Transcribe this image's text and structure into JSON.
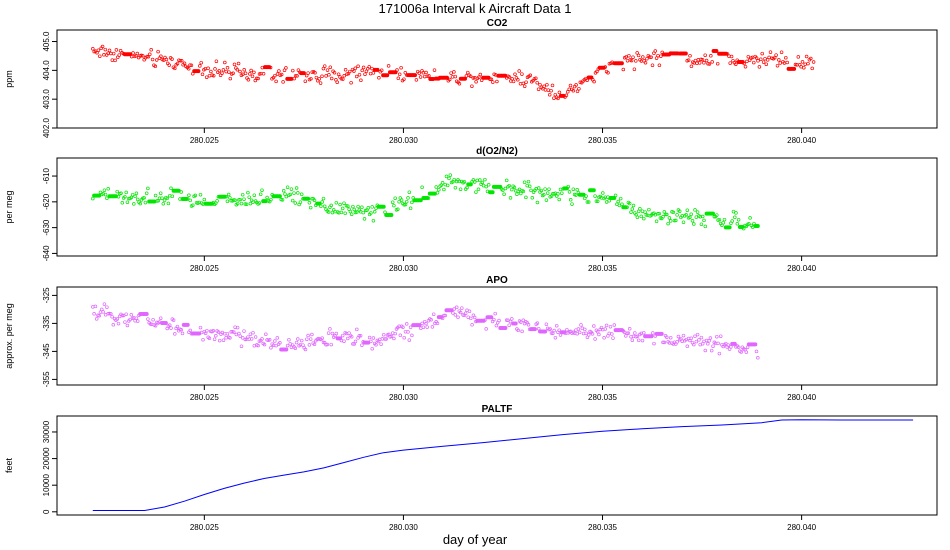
{
  "figure": {
    "title": "171006a   Interval k Aircraft Data 1",
    "xlabel": "day of year"
  },
  "chart_data": [
    {
      "type": "scatter",
      "title": "CO2",
      "ylabel": "ppm",
      "color": "#ff0000",
      "xlim": [
        280.0213,
        280.0434
      ],
      "ylim": [
        402.0,
        405.4
      ],
      "xticks": [
        "280.025",
        "280.030",
        "280.035",
        "280.040"
      ],
      "yticks": [
        "402.0",
        "403.0",
        "404.0",
        "405.0"
      ],
      "trend": {
        "x": [
          280.0222,
          280.0232,
          280.0242,
          280.0252,
          280.0262,
          280.0272,
          280.0282,
          280.0292,
          280.0302,
          280.0312,
          280.0322,
          280.033,
          280.0335,
          280.034,
          280.0345,
          280.0355,
          280.0365,
          280.0375,
          280.0385,
          280.0392,
          280.0403
        ],
        "y": [
          404.7,
          404.5,
          404.3,
          404.0,
          403.85,
          403.8,
          403.85,
          403.95,
          403.9,
          403.75,
          403.8,
          403.75,
          403.5,
          403.1,
          403.6,
          404.3,
          404.5,
          404.35,
          404.3,
          404.4,
          404.2
        ]
      },
      "x_end": 280.0403
    },
    {
      "type": "scatter",
      "title": "d(O2/N2)",
      "ylabel": "per meg",
      "color": "#00e600",
      "xlim": [
        280.0213,
        280.0434
      ],
      "ylim": [
        -641,
        -603
      ],
      "xticks": [
        "280.025",
        "280.030",
        "280.035",
        "280.040"
      ],
      "yticks": [
        "-640",
        "-630",
        "-620",
        "-610"
      ],
      "trend": {
        "x": [
          280.0222,
          280.0232,
          280.0242,
          280.0252,
          280.0262,
          280.0272,
          280.0282,
          280.0292,
          280.0302,
          280.0312,
          280.0322,
          280.0332,
          280.0342,
          280.0352,
          280.0362,
          280.0372,
          280.0382,
          280.0389
        ],
        "y": [
          -617,
          -619,
          -618,
          -620,
          -619,
          -617,
          -622,
          -624,
          -620,
          -612,
          -615,
          -616,
          -617,
          -619,
          -625,
          -626,
          -627,
          -630
        ]
      },
      "x_end": 280.0389
    },
    {
      "type": "scatter",
      "title": "APO",
      "ylabel": "approx. per meg",
      "color": "#e066ff",
      "xlim": [
        280.0213,
        280.0434
      ],
      "ylim": [
        -357,
        -322
      ],
      "xticks": [
        "280.025",
        "280.030",
        "280.035",
        "280.040"
      ],
      "yticks": [
        "-355",
        "-345",
        "-335",
        "-325"
      ],
      "trend": {
        "x": [
          280.0222,
          280.0232,
          280.0242,
          280.0252,
          280.0262,
          280.0272,
          280.0282,
          280.0292,
          280.0302,
          280.0312,
          280.0322,
          280.0332,
          280.0342,
          280.0352,
          280.0362,
          280.0372,
          280.0382,
          280.0389
        ],
        "y": [
          -331,
          -333,
          -336,
          -339,
          -340,
          -343,
          -340,
          -341,
          -337,
          -331,
          -335,
          -336,
          -338,
          -338,
          -340,
          -342,
          -342,
          -345
        ]
      },
      "x_end": 280.0389
    },
    {
      "type": "line",
      "title": "PALTF",
      "ylabel": "feet",
      "color": "#0000ff",
      "xlim": [
        280.0213,
        280.0434
      ],
      "ylim": [
        -1200,
        36000
      ],
      "xticks": [
        "280.025",
        "280.030",
        "280.035",
        "280.040"
      ],
      "yticks": [
        "0",
        "10000",
        "20000",
        "30000"
      ],
      "x": [
        280.0222,
        280.0235,
        280.024,
        280.0245,
        280.025,
        280.0255,
        280.026,
        280.0265,
        280.027,
        280.0275,
        280.028,
        280.0285,
        280.029,
        280.0295,
        280.03,
        280.031,
        280.032,
        280.033,
        280.034,
        280.035,
        280.036,
        280.037,
        280.038,
        280.039,
        280.0395,
        280.04,
        280.041,
        280.042,
        280.0428
      ],
      "y": [
        500,
        500,
        1800,
        4000,
        6500,
        8800,
        10800,
        12500,
        13800,
        15000,
        16500,
        18500,
        20500,
        22200,
        23200,
        24600,
        26000,
        27500,
        29000,
        30300,
        31200,
        32000,
        32600,
        33500,
        34500,
        34600,
        34500,
        34500,
        34500
      ]
    }
  ]
}
